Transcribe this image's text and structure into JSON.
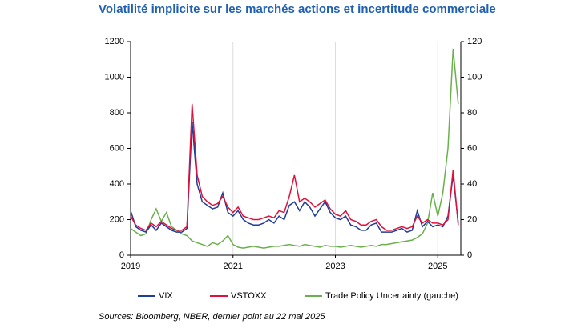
{
  "chart_data": {
    "type": "line",
    "title": "Volatilité implicite sur les marchés actions et incertitude commerciale",
    "source": "Sources: Bloomberg, NBER, dernier point au 22 mai 2025",
    "x": [
      2019.0,
      2019.1,
      2019.2,
      2019.3,
      2019.4,
      2019.5,
      2019.6,
      2019.7,
      2019.8,
      2019.9,
      2020.0,
      2020.1,
      2020.2,
      2020.3,
      2020.4,
      2020.5,
      2020.6,
      2020.7,
      2020.8,
      2020.9,
      2021.0,
      2021.1,
      2021.2,
      2021.3,
      2021.4,
      2021.5,
      2021.6,
      2021.7,
      2021.8,
      2021.9,
      2022.0,
      2022.1,
      2022.2,
      2022.3,
      2022.4,
      2022.5,
      2022.6,
      2022.7,
      2022.8,
      2022.9,
      2023.0,
      2023.1,
      2023.2,
      2023.3,
      2023.4,
      2023.5,
      2023.6,
      2023.7,
      2023.8,
      2023.9,
      2024.0,
      2024.1,
      2024.2,
      2024.3,
      2024.4,
      2024.5,
      2024.6,
      2024.7,
      2024.8,
      2024.9,
      2025.0,
      2025.1,
      2025.2,
      2025.3,
      2025.4
    ],
    "xlim": [
      2019.0,
      2025.45
    ],
    "xticks": [
      2019,
      2021,
      2023,
      2025
    ],
    "ylim": [
      0,
      1200
    ],
    "yticks": [
      0,
      200,
      400,
      600,
      800,
      1000,
      1200
    ],
    "y2lim": [
      0,
      120
    ],
    "y2ticks": [
      0,
      20,
      40,
      60,
      80,
      100,
      120
    ],
    "grid_x": true,
    "series": [
      {
        "name": "VIX",
        "color": "#1f3d99",
        "axis": "y2",
        "values": [
          25,
          16,
          14,
          13,
          17,
          14,
          18,
          16,
          14,
          13,
          13,
          15,
          75,
          40,
          30,
          28,
          26,
          27,
          35,
          24,
          22,
          25,
          20,
          18,
          17,
          17,
          18,
          20,
          18,
          22,
          20,
          28,
          30,
          25,
          30,
          27,
          22,
          26,
          30,
          24,
          21,
          20,
          22,
          17,
          16,
          14,
          14,
          17,
          18,
          13,
          13,
          13,
          14,
          15,
          13,
          14,
          25,
          16,
          19,
          16,
          17,
          16,
          22,
          45,
          18
        ]
      },
      {
        "name": "VSTOXX",
        "color": "#e0103a",
        "axis": "y2",
        "values": [
          22,
          17,
          15,
          14,
          18,
          16,
          19,
          17,
          15,
          14,
          14,
          16,
          85,
          45,
          33,
          30,
          28,
          29,
          33,
          27,
          24,
          27,
          22,
          21,
          20,
          20,
          21,
          22,
          21,
          25,
          24,
          33,
          45,
          30,
          32,
          30,
          27,
          29,
          31,
          26,
          23,
          22,
          25,
          20,
          19,
          17,
          17,
          19,
          20,
          16,
          14,
          14,
          15,
          16,
          15,
          16,
          22,
          18,
          20,
          18,
          18,
          17,
          20,
          48,
          17
        ]
      },
      {
        "name": "Trade Policy Uncertainty (gauche)",
        "color": "#6ab04c",
        "values": [
          150,
          130,
          110,
          120,
          200,
          260,
          190,
          240,
          160,
          140,
          120,
          110,
          80,
          70,
          60,
          50,
          70,
          60,
          80,
          110,
          60,
          45,
          40,
          45,
          50,
          45,
          40,
          45,
          50,
          50,
          55,
          60,
          55,
          50,
          60,
          55,
          50,
          45,
          55,
          50,
          50,
          45,
          50,
          55,
          50,
          45,
          50,
          55,
          50,
          60,
          60,
          65,
          70,
          75,
          80,
          85,
          100,
          120,
          180,
          350,
          220,
          350,
          600,
          1160,
          850
        ]
      }
    ]
  }
}
